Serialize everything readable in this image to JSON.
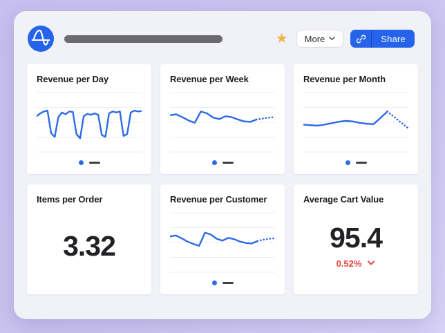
{
  "header": {
    "logo": "amplitude-logo",
    "favorite_star": "★",
    "more_button": {
      "label": "More"
    },
    "share_button": {
      "label": "Share"
    }
  },
  "colors": {
    "background_lavender": "#CBC4F0",
    "panel": "#F1F2F8",
    "card": "#FFFFFF",
    "accent_blue": "#2563EB",
    "chart_line": "#2D6AE8",
    "gridline": "#ECEDF2",
    "legend_dash": "#3F3F46",
    "title_bar": "#6A6A6F",
    "star_gold": "#F2B14B",
    "negative_red": "#E8423C",
    "text_dark": "#1B1B21"
  },
  "cards": [
    {
      "id": "revenue-per-day",
      "title": "Revenue per Day",
      "type": "line",
      "chart_data": {
        "type": "line",
        "values": [
          60,
          66,
          70,
          72,
          24,
          16,
          58,
          68,
          64,
          70,
          69,
          22,
          13,
          60,
          65,
          63,
          66,
          63,
          20,
          16,
          66,
          70,
          68,
          70,
          18,
          22,
          68,
          72,
          70,
          71
        ],
        "forecast": [],
        "value_range": [
          0,
          100
        ],
        "grid": true,
        "legend": "series dot + dash"
      }
    },
    {
      "id": "revenue-per-week",
      "title": "Revenue per Week",
      "type": "line",
      "chart_data": {
        "type": "line",
        "values": [
          62,
          64,
          58,
          51,
          46,
          70,
          66,
          57,
          54,
          60,
          58,
          53,
          49,
          48,
          53
        ],
        "forecast": [
          55,
          57,
          58
        ],
        "value_range": [
          0,
          100
        ],
        "grid": true,
        "legend": "series dot + dash"
      }
    },
    {
      "id": "revenue-per-month",
      "title": "Revenue per Month",
      "type": "line",
      "chart_data": {
        "type": "line",
        "values": [
          42,
          41,
          40,
          42,
          45,
          48,
          50,
          49,
          46,
          44,
          43,
          56,
          70
        ],
        "forecast": [
          58,
          46,
          34
        ],
        "value_range": [
          0,
          100
        ],
        "grid": true,
        "legend": "series dot + dash"
      }
    },
    {
      "id": "items-per-order",
      "title": "Items per Order",
      "type": "number",
      "value": "3.32"
    },
    {
      "id": "revenue-per-customer",
      "title": "Revenue per Customer",
      "type": "line",
      "chart_data": {
        "type": "line",
        "values": [
          60,
          62,
          56,
          49,
          44,
          40,
          68,
          64,
          55,
          51,
          57,
          54,
          49,
          46,
          45,
          50
        ],
        "forecast": [
          53,
          55,
          56
        ],
        "value_range": [
          0,
          100
        ],
        "grid": true,
        "legend": "series dot + dash"
      }
    },
    {
      "id": "average-cart-value",
      "title": "Average Cart Value",
      "type": "number",
      "value": "95.4",
      "change": {
        "label": "0.52%",
        "direction": "down"
      }
    }
  ]
}
